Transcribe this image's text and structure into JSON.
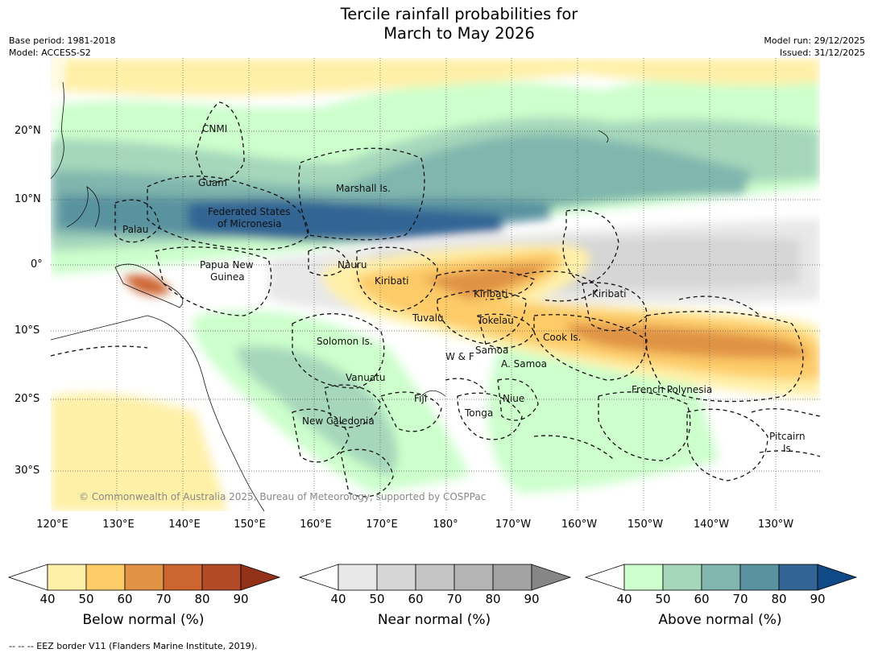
{
  "title_line1": "Tercile rainfall probabilities for",
  "title_line2": "March to May 2026",
  "base_period": "Base period: 1981-2018",
  "model": "Model: ACCESS-S2",
  "model_run": "Model run: 29/12/2025",
  "issued": "Issued: 31/12/2025",
  "lat_ticks": [
    "20°N",
    "10°N",
    "0°",
    "10°S",
    "20°S",
    "30°S"
  ],
  "lon_ticks": [
    "120°E",
    "130°E",
    "140°E",
    "150°E",
    "160°E",
    "170°E",
    "180°",
    "170°W",
    "160°W",
    "150°W",
    "140°W",
    "130°W"
  ],
  "regions": [
    "CNMI",
    "Guam",
    "Marshall Is.",
    "Federated States",
    "of Micronesia",
    "Palau",
    "Papua New",
    "Guinea",
    "Nauru",
    "Kiribati",
    "Kiribati",
    "Kiribati",
    "Tuvalu",
    "Tokelau",
    "Cook Is.",
    "Solomon Is.",
    "W & F",
    "Samoa",
    "A. Samoa",
    "Vanuatu",
    "Fiji",
    "Niue",
    "Tonga",
    "French Polynesia",
    "New Caledonia",
    "Pitcairn",
    "Is."
  ],
  "copyright": "© Commonwealth of Australia 2025, Bureau of Meteorology, supported by COSPPac",
  "colorbars": [
    {
      "label": "Below normal (%)",
      "ticks": [
        "40",
        "50",
        "60",
        "70",
        "80",
        "90"
      ],
      "colors": [
        "#ffffff",
        "#fff0a8",
        "#fdcb67",
        "#e09344",
        "#cd6531",
        "#b24a27",
        "#923018"
      ]
    },
    {
      "label": "Near normal (%)",
      "ticks": [
        "40",
        "50",
        "60",
        "70",
        "80",
        "90"
      ],
      "colors": [
        "#ffffff",
        "#e8e8e8",
        "#d6d6d6",
        "#c5c5c5",
        "#b4b4b4",
        "#a2a2a2",
        "#868686"
      ]
    },
    {
      "label": "Above normal (%)",
      "ticks": [
        "40",
        "50",
        "60",
        "70",
        "80",
        "90"
      ],
      "colors": [
        "#ffffff",
        "#ccffcc",
        "#a6d7bb",
        "#80b6ad",
        "#5a93a0",
        "#326594",
        "#0f4a86"
      ]
    }
  ],
  "footer": "--  --  -- EEZ border V11 (Flanders Marine Institute, 2019)."
}
